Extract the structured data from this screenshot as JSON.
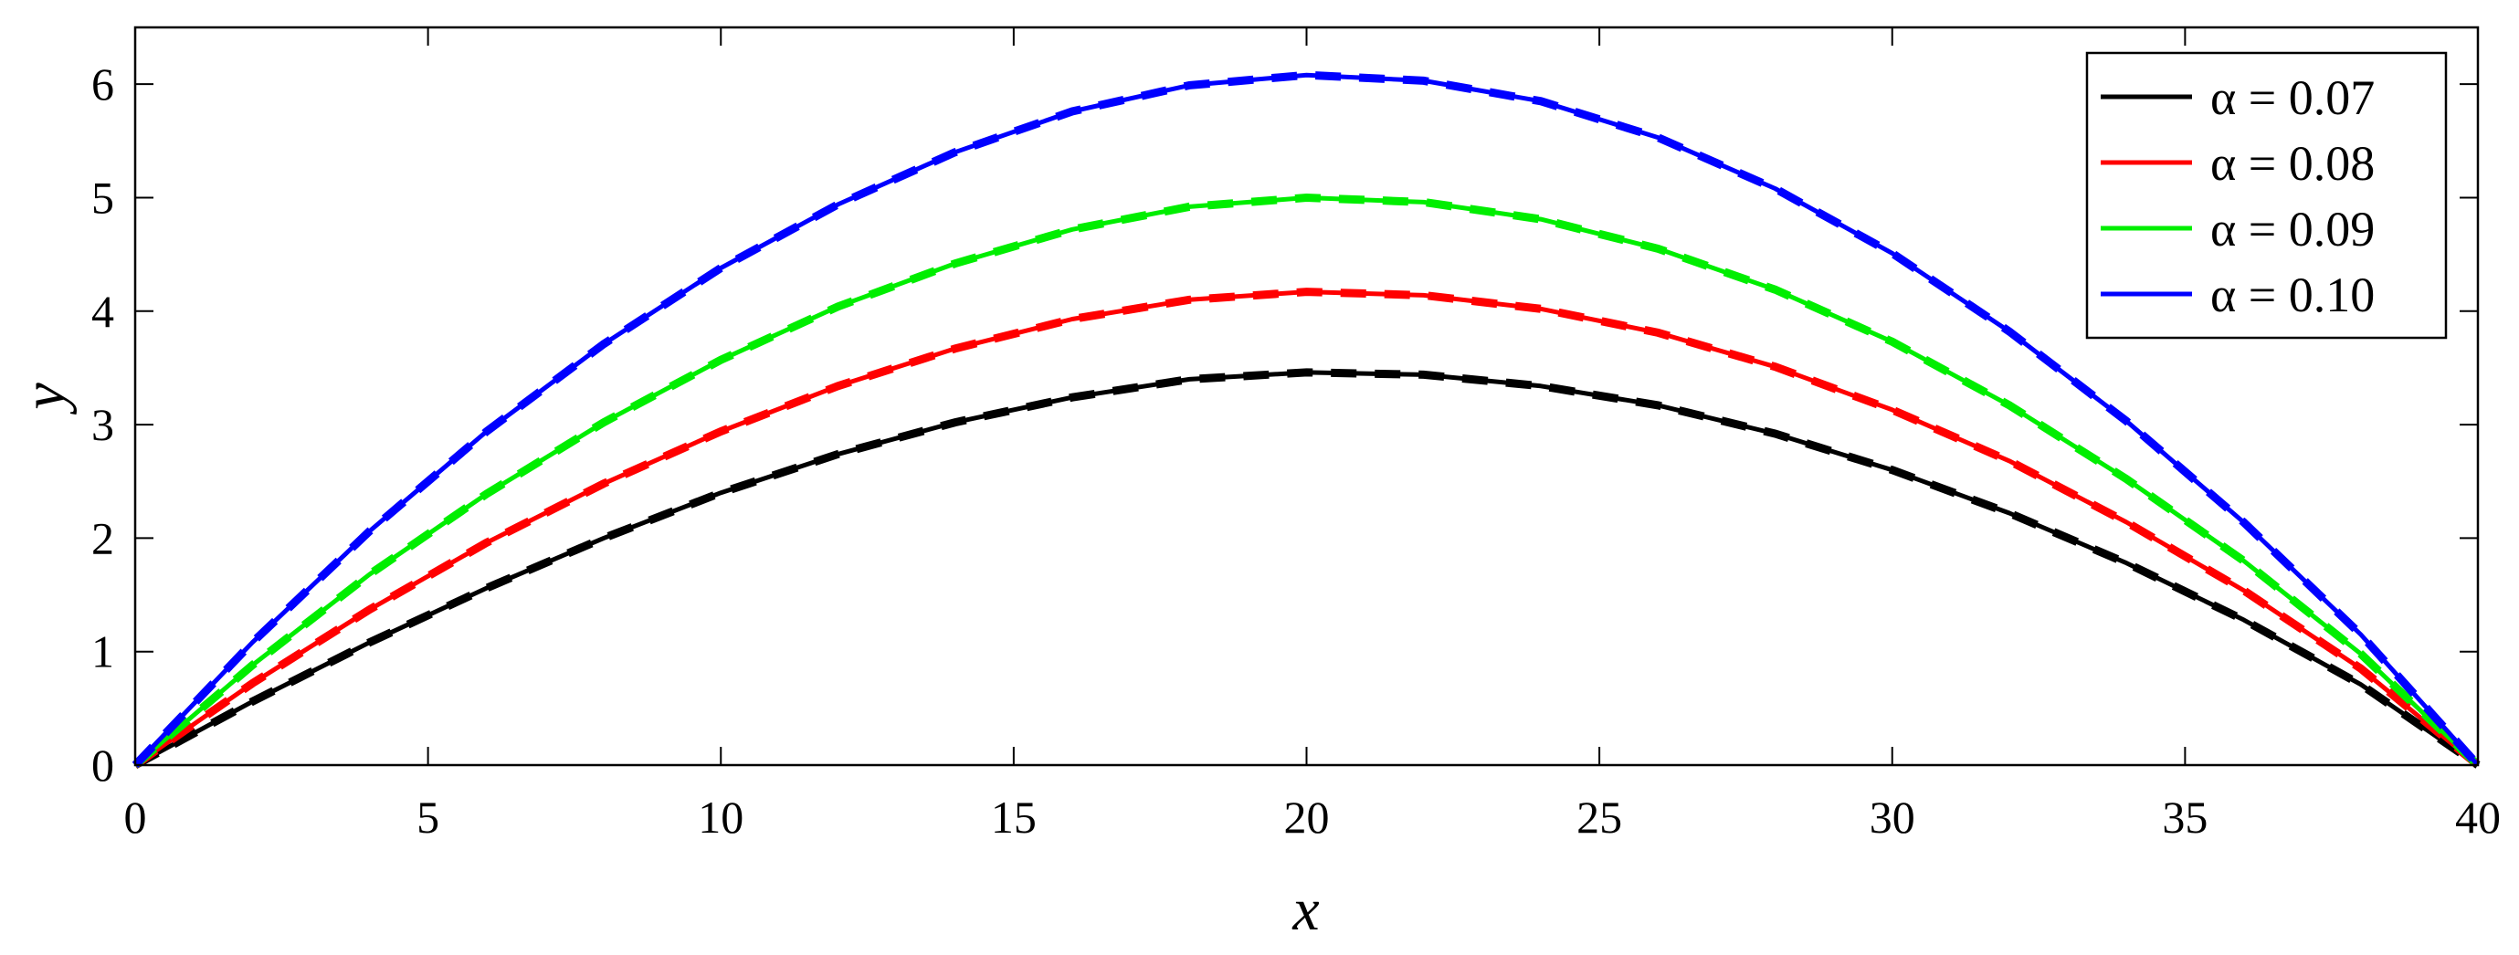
{
  "chart_data": {
    "type": "line",
    "xlabel": "x",
    "ylabel": "y",
    "xlim": [
      0,
      40
    ],
    "ylim": [
      0,
      6.5
    ],
    "xticks": [
      0,
      5,
      10,
      15,
      20,
      25,
      30,
      35,
      40
    ],
    "yticks": [
      0,
      1,
      2,
      3,
      4,
      5,
      6
    ],
    "grid": false,
    "legend_position": "top-right",
    "x": [
      0,
      2,
      4,
      6,
      8,
      10,
      12,
      14,
      16,
      18,
      20,
      22,
      24,
      26,
      28,
      30,
      32,
      34,
      36,
      38,
      40
    ],
    "series": [
      {
        "name": "α = 0.07",
        "color": "#000000",
        "values": [
          0,
          0.56,
          1.08,
          1.56,
          2.0,
          2.4,
          2.74,
          3.02,
          3.24,
          3.4,
          3.46,
          3.44,
          3.34,
          3.17,
          2.92,
          2.6,
          2.22,
          1.78,
          1.28,
          0.71,
          0
        ]
      },
      {
        "name": "α = 0.08",
        "color": "#ff0000",
        "values": [
          0,
          0.72,
          1.37,
          1.96,
          2.48,
          2.94,
          3.34,
          3.67,
          3.93,
          4.1,
          4.17,
          4.14,
          4.02,
          3.81,
          3.51,
          3.13,
          2.68,
          2.14,
          1.54,
          0.85,
          0
        ]
      },
      {
        "name": "α = 0.09",
        "color": "#00ee00",
        "values": [
          0,
          0.88,
          1.68,
          2.39,
          3.02,
          3.57,
          4.04,
          4.42,
          4.72,
          4.92,
          5.0,
          4.96,
          4.81,
          4.55,
          4.19,
          3.73,
          3.17,
          2.52,
          1.8,
          0.98,
          0
        ]
      },
      {
        "name": "α = 0.10",
        "color": "#0000ff",
        "values": [
          0,
          1.08,
          2.06,
          2.94,
          3.71,
          4.38,
          4.94,
          5.4,
          5.76,
          5.99,
          6.08,
          6.03,
          5.85,
          5.53,
          5.08,
          4.51,
          3.82,
          3.03,
          2.14,
          1.15,
          0
        ]
      }
    ]
  }
}
